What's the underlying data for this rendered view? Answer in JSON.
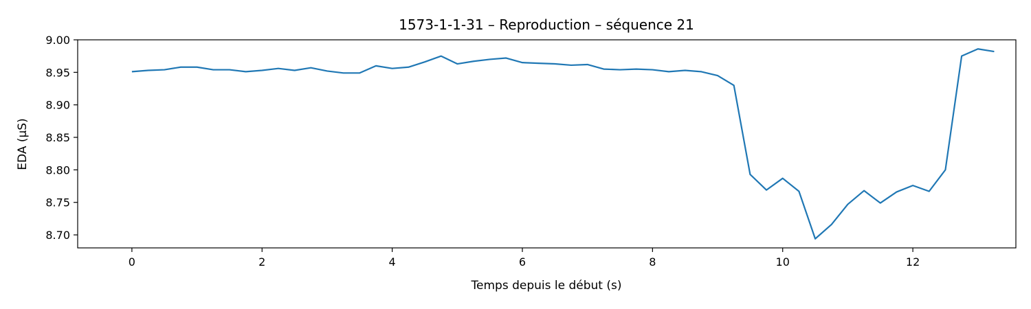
{
  "chart_data": {
    "type": "line",
    "title": "1573-1-1-31 – Reproduction – séquence 21",
    "xlabel": "Temps depuis le début (s)",
    "ylabel": "EDA (µS)",
    "xlim": [
      -0.8333,
      13.5833
    ],
    "ylim": [
      8.68,
      9.0
    ],
    "xticks": [
      0,
      2,
      4,
      6,
      8,
      10,
      12
    ],
    "xtick_labels": [
      "0",
      "2",
      "4",
      "6",
      "8",
      "10",
      "12"
    ],
    "yticks": [
      8.7,
      8.75,
      8.8,
      8.85,
      8.9,
      8.95,
      9.0
    ],
    "ytick_labels": [
      "8.70",
      "8.75",
      "8.80",
      "8.85",
      "8.90",
      "8.95",
      "9.00"
    ],
    "grid": false,
    "legend": "none",
    "series": [
      {
        "color": "#1f77b4",
        "x": [
          0,
          0.25,
          0.5,
          0.75,
          1.0,
          1.25,
          1.5,
          1.75,
          2.0,
          2.25,
          2.5,
          2.75,
          3.0,
          3.25,
          3.5,
          3.75,
          4.0,
          4.25,
          4.5,
          4.75,
          5.0,
          5.25,
          5.5,
          5.75,
          6.0,
          6.25,
          6.5,
          6.75,
          7.0,
          7.25,
          7.5,
          7.75,
          8.0,
          8.25,
          8.5,
          8.75,
          9.0,
          9.25,
          9.5,
          9.75,
          10.0,
          10.25,
          10.5,
          10.75,
          11.0,
          11.25,
          11.5,
          11.75,
          12.0,
          12.25,
          12.5,
          12.75,
          13.0,
          13.25
        ],
        "y": [
          8.951,
          8.953,
          8.954,
          8.958,
          8.958,
          8.954,
          8.954,
          8.951,
          8.953,
          8.956,
          8.953,
          8.957,
          8.952,
          8.949,
          8.949,
          8.96,
          8.956,
          8.958,
          8.966,
          8.975,
          8.963,
          8.967,
          8.97,
          8.972,
          8.965,
          8.964,
          8.963,
          8.961,
          8.962,
          8.955,
          8.954,
          8.955,
          8.954,
          8.951,
          8.953,
          8.951,
          8.945,
          8.93,
          8.793,
          8.769,
          8.787,
          8.767,
          8.694,
          8.716,
          8.747,
          8.768,
          8.749,
          8.766,
          8.776,
          8.767,
          8.8,
          8.975,
          8.986,
          8.982
        ]
      }
    ]
  }
}
